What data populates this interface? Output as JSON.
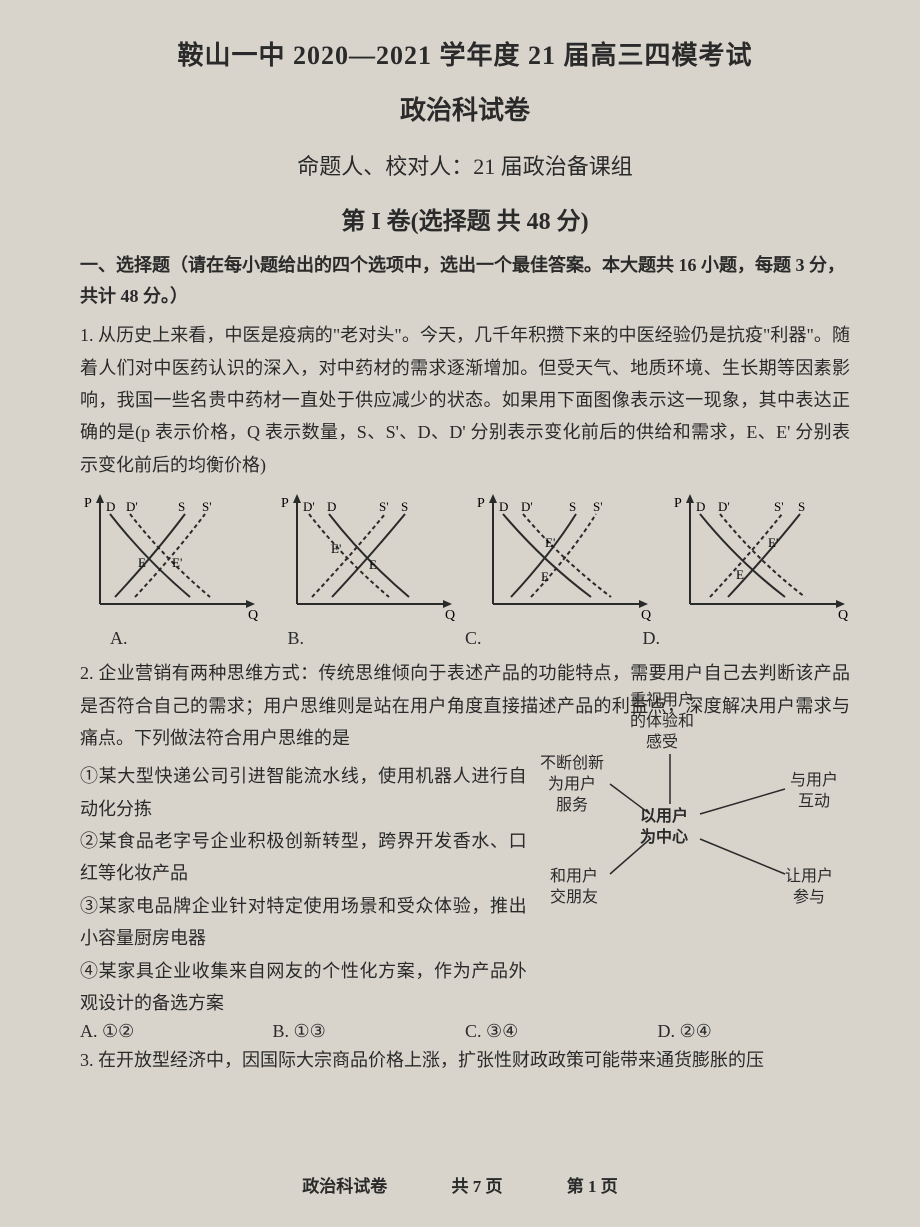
{
  "header": {
    "title_main": "鞍山一中 2020—2021 学年度 21 届高三四模考试",
    "title_sub": "政治科试卷",
    "author": "命题人、校对人：21 届政治备课组",
    "section": "第 I 卷(选择题 共 48 分)"
  },
  "instructions": "一、选择题（请在每小题给出的四个选项中，选出一个最佳答案。本大题共 16 小题，每题 3 分，共计 48 分。）",
  "q1": {
    "text": "1. 从历史上来看，中医是疫病的\"老对头\"。今天，几千年积攒下来的中医经验仍是抗疫\"利器\"。随着人们对中医药认识的深入，对中药材的需求逐渐增加。但受天气、地质环境、生长期等因素影响，我国一些名贵中药材一直处于供应减少的状态。如果用下面图像表示这一现象，其中表达正确的是(p 表示价格，Q 表示数量，S、S'、D、D' 分别表示变化前后的供给和需求，E、E' 分别表示变化前后的均衡价格)",
    "labels": {
      "a": "A.",
      "b": "B.",
      "c": "C.",
      "d": "D."
    }
  },
  "charts": {
    "axis_color": "#2a2a2a",
    "line_color": "#2a2a2a",
    "axis_font": "14",
    "curve_width": 2,
    "chart_a": {
      "p_label": "P",
      "q_label": "Q",
      "curves": [
        "D",
        "D'",
        "S",
        "S'"
      ],
      "labels_top": [
        "D",
        "D'",
        "S",
        "S'"
      ],
      "e_labels": [
        "E",
        "E'"
      ],
      "d_shift": "right",
      "s_shift": "right"
    },
    "chart_b": {
      "p_label": "P",
      "q_label": "Q",
      "labels_top": [
        "D'",
        "D",
        "S'",
        "S"
      ],
      "e_labels": [
        "E'",
        "E"
      ],
      "d_shift": "left",
      "s_shift": "left"
    },
    "chart_c": {
      "p_label": "P",
      "q_label": "Q",
      "labels_top": [
        "D",
        "D'",
        "S",
        "S'"
      ],
      "e_labels": [
        "E'",
        "E"
      ],
      "d_shift": "right",
      "s_shift": "right_cross"
    },
    "chart_d": {
      "p_label": "P",
      "q_label": "Q",
      "labels_top": [
        "D",
        "D'",
        "S'",
        "S"
      ],
      "e_labels": [
        "E",
        "E'"
      ],
      "d_shift": "right",
      "s_shift": "left"
    }
  },
  "q2": {
    "intro": "2. 企业营销有两种思维方式：传统思维倾向于表述产品的功能特点，需要用户自己去判断该产品是否符合自己的需求；用户思维则是站在用户角度直接描述产品的利益点，深度解决用户需求与痛点。下列做法符合用户思维的是",
    "opt1": "①某大型快递公司引进智能流水线，使用机器人进行自动化分拣",
    "opt2": "②某食品老字号企业积极创新转型，跨界开发香水、口红等化妆产品",
    "opt3": "③某家电品牌企业针对特定使用场景和受众体验，推出小容量厨房电器",
    "opt4": "④某家具企业收集来自网友的个性化方案，作为产品外观设计的备选方案",
    "choices": {
      "a": "A. ①②",
      "b": "B. ①③",
      "c": "C. ③④",
      "d": "D. ②④"
    }
  },
  "concept_map": {
    "center": "以用户\n为中心",
    "top": "重视用户\n的体验和\n感受",
    "left": "不断创新\n为用户\n服务",
    "right": "与用户\n互动",
    "bottom_left": "和用户\n交朋友",
    "bottom_right": "让用户\n参与",
    "line_color": "#2a2a2a"
  },
  "q3": {
    "text": "3. 在开放型经济中，因国际大宗商品价格上涨，扩张性财政政策可能带来通货膨胀的压"
  },
  "footer": {
    "subject": "政治科试卷",
    "pages": "共 7 页",
    "page": "第 1 页"
  }
}
